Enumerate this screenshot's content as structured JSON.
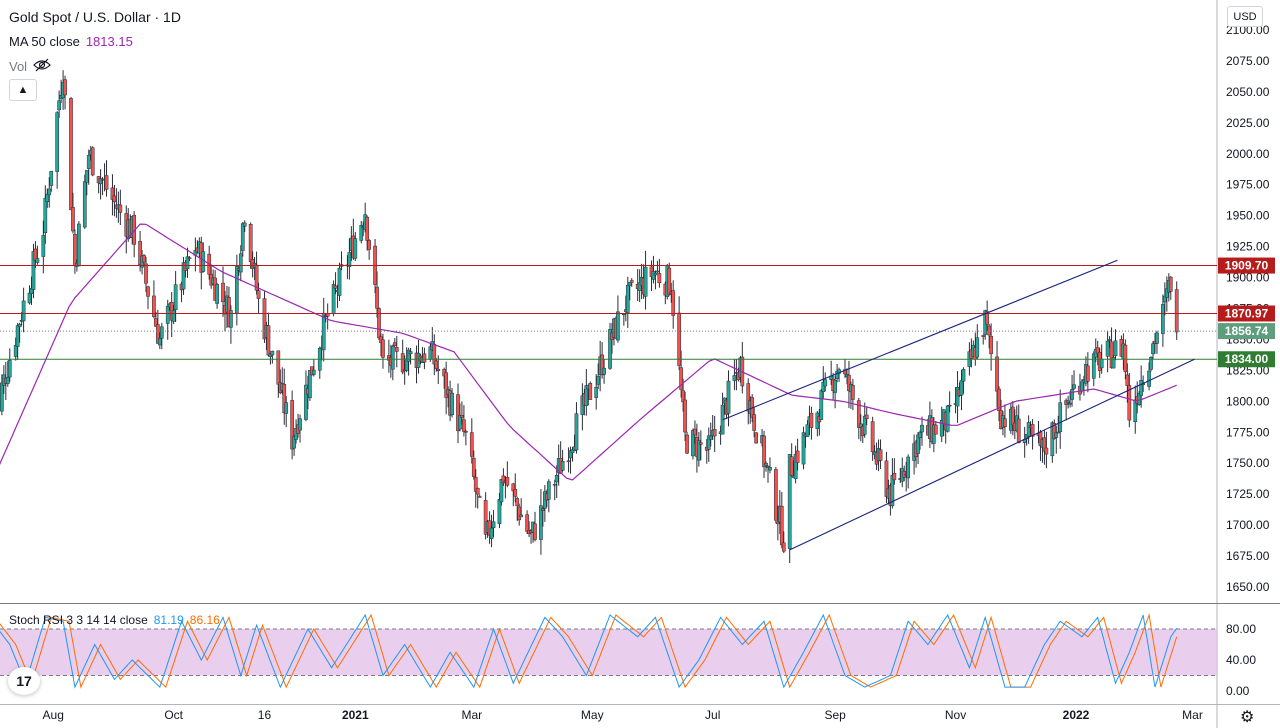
{
  "header": {
    "symbol": "Gold Spot / U.S. Dollar · 1D",
    "ma_label": "MA 50 close",
    "ma_value": "1813.15",
    "vol_label": "Vol",
    "currency": "USD"
  },
  "oscillator": {
    "label": "Stoch RSI 3 3 14 14 close",
    "k_value": "81.19",
    "d_value": "86.16"
  },
  "colors": {
    "up": "#26a69a",
    "down": "#ef5350",
    "ma": "#9c27b0",
    "resistance": "#b71c1c",
    "support": "#2e7d32",
    "last_price": "#5f9e7c",
    "channel": "#1a237e",
    "stoch_k": "#2196f3",
    "stoch_d": "#ff6d00",
    "stoch_band": "#e1bee7"
  },
  "icons": {
    "vol_visibility": "eye-off-icon",
    "collapse": "chevron-up-icon",
    "settings": "gear-icon",
    "logo": "tradingview-logo"
  },
  "chart_data": [
    {
      "type": "candlestick",
      "title": "Gold Spot / U.S. Dollar · 1D",
      "y_ticks": [
        "2100.00",
        "2075.00",
        "2050.00",
        "2025.00",
        "2000.00",
        "1975.00",
        "1950.00",
        "1925.00",
        "1900.00",
        "1875.00",
        "1850.00",
        "1825.00",
        "1800.00",
        "1775.00",
        "1750.00",
        "1725.00",
        "1700.00",
        "1675.00",
        "1650.00"
      ],
      "ylim": [
        1640,
        2110
      ],
      "x_ticks": [
        {
          "label": "Aug",
          "x": "2020-08-01"
        },
        {
          "label": "Oct",
          "x": "2020-10-01"
        },
        {
          "label": "16",
          "x": "2020-11-16"
        },
        {
          "label": "2021",
          "x": "2021-01-01"
        },
        {
          "label": "Mar",
          "x": "2021-03-01"
        },
        {
          "label": "May",
          "x": "2021-05-01"
        },
        {
          "label": "Jul",
          "x": "2021-07-01"
        },
        {
          "label": "Sep",
          "x": "2021-09-01"
        },
        {
          "label": "Nov",
          "x": "2021-11-01"
        },
        {
          "label": "2022",
          "x": "2022-01-01"
        },
        {
          "label": "Mar",
          "x": "2022-03-01"
        }
      ],
      "price_path": [
        [
          "2020-07-01",
          1780
        ],
        [
          "2020-07-27",
          1940
        ],
        [
          "2020-08-06",
          2070
        ],
        [
          "2020-08-12",
          1910
        ],
        [
          "2020-08-19",
          2000
        ],
        [
          "2020-09-01",
          1960
        ],
        [
          "2020-09-11",
          1935
        ],
        [
          "2020-09-24",
          1850
        ],
        [
          "2020-10-12",
          1925
        ],
        [
          "2020-10-30",
          1870
        ],
        [
          "2020-11-06",
          1955
        ],
        [
          "2020-11-13",
          1880
        ],
        [
          "2020-11-30",
          1770
        ],
        [
          "2020-12-15",
          1855
        ],
        [
          "2021-01-06",
          1955
        ],
        [
          "2021-01-15",
          1830
        ],
        [
          "2021-02-08",
          1840
        ],
        [
          "2021-02-26",
          1770
        ],
        [
          "2021-03-08",
          1685
        ],
        [
          "2021-03-17",
          1740
        ],
        [
          "2021-03-31",
          1690
        ],
        [
          "2021-04-23",
          1780
        ],
        [
          "2021-05-18",
          1880
        ],
        [
          "2021-06-01",
          1905
        ],
        [
          "2021-06-10",
          1895
        ],
        [
          "2021-06-17",
          1770
        ],
        [
          "2021-06-29",
          1760
        ],
        [
          "2021-07-15",
          1830
        ],
        [
          "2021-08-06",
          1690
        ],
        [
          "2021-08-09",
          1745
        ],
        [
          "2021-09-03",
          1830
        ],
        [
          "2021-09-29",
          1725
        ],
        [
          "2021-10-13",
          1770
        ],
        [
          "2021-10-29",
          1785
        ],
        [
          "2021-11-16",
          1865
        ],
        [
          "2021-11-24",
          1790
        ],
        [
          "2021-12-15",
          1760
        ],
        [
          "2022-01-05",
          1825
        ],
        [
          "2022-01-25",
          1845
        ],
        [
          "2022-01-28",
          1790
        ],
        [
          "2022-02-14",
          1870
        ],
        [
          "2022-02-18",
          1898
        ],
        [
          "2022-02-21",
          1856
        ]
      ],
      "ma50_path": [
        [
          "2020-07-01",
          1735
        ],
        [
          "2020-08-10",
          1880
        ],
        [
          "2020-09-15",
          1945
        ],
        [
          "2020-10-25",
          1905
        ],
        [
          "2020-12-20",
          1865
        ],
        [
          "2021-01-25",
          1855
        ],
        [
          "2021-02-20",
          1840
        ],
        [
          "2021-03-20",
          1780
        ],
        [
          "2021-04-20",
          1735
        ],
        [
          "2021-05-25",
          1785
        ],
        [
          "2021-07-01",
          1835
        ],
        [
          "2021-08-10",
          1805
        ],
        [
          "2021-09-05",
          1800
        ],
        [
          "2021-10-01",
          1790
        ],
        [
          "2021-11-01",
          1780
        ],
        [
          "2021-12-01",
          1800
        ],
        [
          "2022-01-10",
          1810
        ],
        [
          "2022-02-01",
          1800
        ],
        [
          "2022-02-21",
          1813
        ]
      ],
      "horizontal_levels": [
        {
          "value": 1909.7,
          "label": "1909.70",
          "color": "#b71c1c"
        },
        {
          "value": 1870.97,
          "label": "1870.97",
          "color": "#b71c1c"
        },
        {
          "value": 1856.74,
          "label": "1856.74",
          "color": "#5f9e7c",
          "style": "dotted"
        },
        {
          "value": 1834.0,
          "label": "1834.00",
          "color": "#2e7d32"
        }
      ],
      "trendlines": [
        {
          "from": [
            "2021-07-06",
            1785
          ],
          "to": [
            "2022-01-22",
            1914
          ]
        },
        {
          "from": [
            "2021-08-09",
            1680
          ],
          "to": [
            "2022-03-02",
            1834
          ]
        }
      ]
    },
    {
      "type": "line",
      "title": "Stoch RSI 3 3 14 14 close",
      "y_ticks": [
        "80.00",
        "40.00",
        "0.00"
      ],
      "ylim": [
        -5,
        105
      ],
      "band": [
        20,
        80
      ],
      "series": [
        {
          "name": "K",
          "value": 81.19
        },
        {
          "name": "D",
          "value": 86.16
        }
      ],
      "k_path": [
        [
          "2020-07-01",
          90
        ],
        [
          "2020-07-10",
          60
        ],
        [
          "2020-07-18",
          10
        ],
        [
          "2020-07-28",
          95
        ],
        [
          "2020-08-06",
          90
        ],
        [
          "2020-08-12",
          5
        ],
        [
          "2020-08-22",
          60
        ],
        [
          "2020-09-01",
          15
        ],
        [
          "2020-09-10",
          40
        ],
        [
          "2020-09-24",
          5
        ],
        [
          "2020-10-05",
          90
        ],
        [
          "2020-10-15",
          40
        ],
        [
          "2020-10-26",
          95
        ],
        [
          "2020-11-04",
          20
        ],
        [
          "2020-11-12",
          85
        ],
        [
          "2020-11-24",
          5
        ],
        [
          "2020-12-08",
          80
        ],
        [
          "2020-12-20",
          30
        ],
        [
          "2021-01-06",
          98
        ],
        [
          "2021-01-15",
          20
        ],
        [
          "2021-01-26",
          60
        ],
        [
          "2021-02-08",
          5
        ],
        [
          "2021-02-18",
          50
        ],
        [
          "2021-03-02",
          5
        ],
        [
          "2021-03-12",
          80
        ],
        [
          "2021-03-22",
          10
        ],
        [
          "2021-04-07",
          95
        ],
        [
          "2021-04-16",
          70
        ],
        [
          "2021-04-28",
          20
        ],
        [
          "2021-05-10",
          98
        ],
        [
          "2021-05-24",
          70
        ],
        [
          "2021-06-02",
          95
        ],
        [
          "2021-06-14",
          5
        ],
        [
          "2021-06-24",
          40
        ],
        [
          "2021-07-05",
          95
        ],
        [
          "2021-07-16",
          60
        ],
        [
          "2021-07-27",
          90
        ],
        [
          "2021-08-06",
          5
        ],
        [
          "2021-08-16",
          50
        ],
        [
          "2021-08-26",
          98
        ],
        [
          "2021-09-06",
          20
        ],
        [
          "2021-09-16",
          5
        ],
        [
          "2021-09-29",
          20
        ],
        [
          "2021-10-08",
          90
        ],
        [
          "2021-10-18",
          60
        ],
        [
          "2021-10-28",
          98
        ],
        [
          "2021-11-08",
          30
        ],
        [
          "2021-11-16",
          95
        ],
        [
          "2021-11-26",
          5
        ],
        [
          "2021-12-06",
          5
        ],
        [
          "2021-12-16",
          60
        ],
        [
          "2021-12-24",
          90
        ],
        [
          "2022-01-04",
          70
        ],
        [
          "2022-01-12",
          95
        ],
        [
          "2022-01-21",
          10
        ],
        [
          "2022-01-28",
          50
        ],
        [
          "2022-02-04",
          98
        ],
        [
          "2022-02-10",
          5
        ],
        [
          "2022-02-18",
          70
        ],
        [
          "2022-02-21",
          81
        ]
      ]
    }
  ]
}
